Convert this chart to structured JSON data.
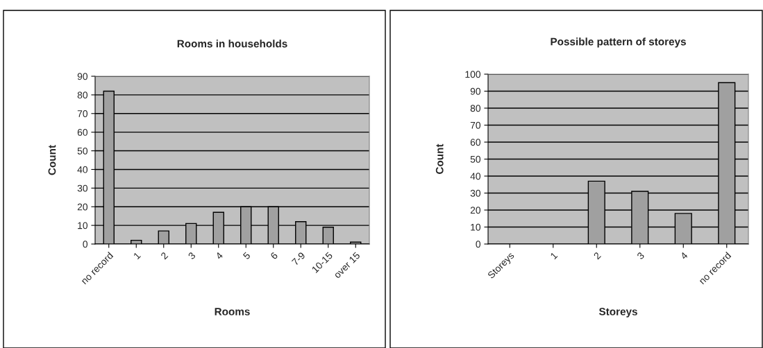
{
  "chart_data": [
    {
      "type": "bar",
      "title": "Rooms in households",
      "xlabel": "Rooms",
      "ylabel": "Count",
      "categories": [
        "no record",
        "1",
        "2",
        "3",
        "4",
        "5",
        "6",
        "7-9",
        "10-15",
        "over 15"
      ],
      "values": [
        82,
        2,
        7,
        11,
        17,
        20,
        20,
        12,
        9,
        1
      ],
      "color": "#a0a0a0",
      "ylim": [
        0,
        90
      ],
      "yticks": [
        0,
        10,
        20,
        30,
        40,
        50,
        60,
        70,
        80,
        90
      ],
      "grid": "y"
    },
    {
      "type": "bar",
      "title": "Possible pattern of storeys",
      "xlabel": "Storeys",
      "ylabel": "Count",
      "categories": [
        "Storeys",
        "1",
        "2",
        "3",
        "4",
        "no record"
      ],
      "values": [
        null,
        null,
        37,
        31,
        18,
        95
      ],
      "color": "#a0a0a0",
      "ylim": [
        0,
        100
      ],
      "yticks": [
        0,
        10,
        20,
        30,
        40,
        50,
        60,
        70,
        80,
        90,
        100
      ],
      "grid": "y"
    }
  ]
}
